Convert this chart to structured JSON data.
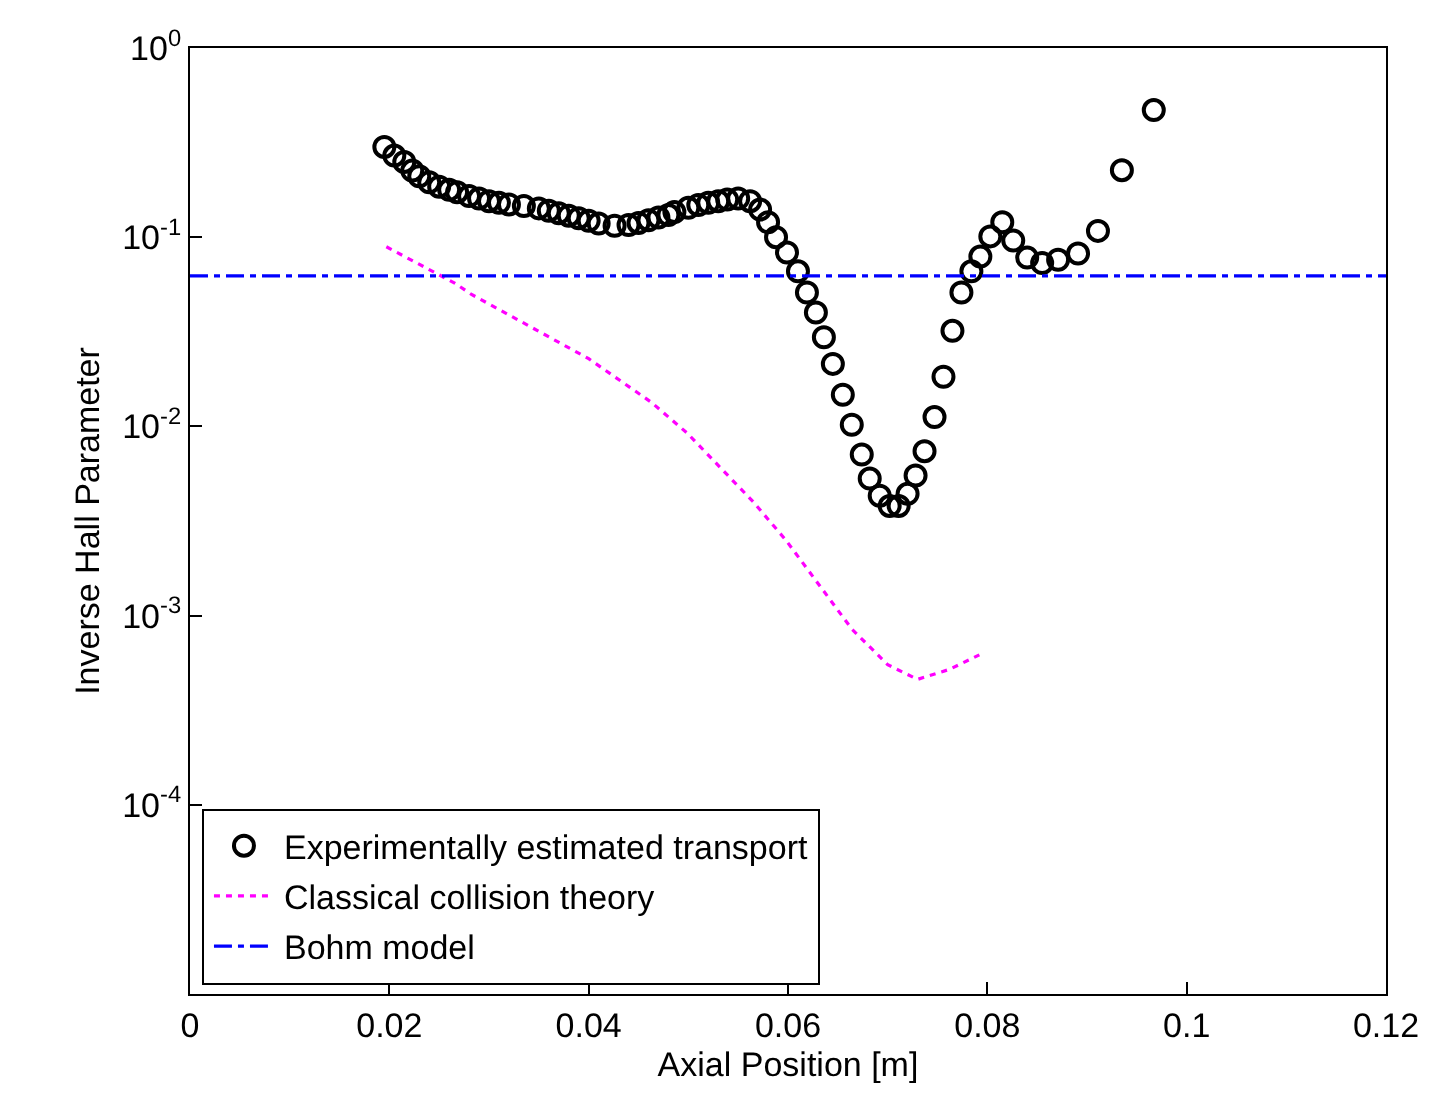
{
  "chart_data": {
    "type": "scatter",
    "xlabel": "Axial Position [m]",
    "ylabel": "Inverse Hall Parameter",
    "log": "y",
    "grid": false,
    "legend": "bottom left",
    "xlim": [
      0,
      0.12
    ],
    "xticks": [
      0,
      0.02,
      0.04,
      0.06,
      0.08,
      0.1,
      0.12
    ],
    "ylim": [
      1e-05,
      1
    ],
    "yticks": [
      {
        "value": 0.0001,
        "label": "10$^{-4}$"
      },
      {
        "value": 0.001,
        "label": "10$^{-3}$"
      },
      {
        "value": 0.01,
        "label": "10$^{-2}$"
      },
      {
        "value": 0.1,
        "label": "10$^{-1}$"
      },
      {
        "value": 1,
        "label": "10$^{0}$"
      }
    ],
    "series": [
      {
        "name": "Experimentally estimated transport",
        "marker": "circle",
        "color": "#000000",
        "x": [
          0.0195,
          0.0205,
          0.0215,
          0.0223,
          0.023,
          0.024,
          0.025,
          0.026,
          0.0268,
          0.028,
          0.029,
          0.03,
          0.031,
          0.032,
          0.0335,
          0.035,
          0.036,
          0.037,
          0.038,
          0.039,
          0.04,
          0.041,
          0.0426,
          0.044,
          0.045,
          0.046,
          0.047,
          0.048,
          0.0486,
          0.05,
          0.051,
          0.052,
          0.053,
          0.0539,
          0.055,
          0.0562,
          0.0572,
          0.058,
          0.0588,
          0.0599,
          0.061,
          0.0619,
          0.0628,
          0.0636,
          0.0645,
          0.0655,
          0.0664,
          0.0674,
          0.0682,
          0.0692,
          0.0702,
          0.0711,
          0.072,
          0.0728,
          0.0737,
          0.0747,
          0.0756,
          0.0765,
          0.0774,
          0.0784,
          0.0793,
          0.0803,
          0.0815,
          0.0826,
          0.084,
          0.0855,
          0.0871,
          0.0891,
          0.0911,
          0.0935,
          0.0967
        ],
        "values": [
          0.3,
          0.27,
          0.25,
          0.225,
          0.21,
          0.195,
          0.185,
          0.178,
          0.173,
          0.165,
          0.16,
          0.155,
          0.152,
          0.149,
          0.146,
          0.142,
          0.138,
          0.134,
          0.13,
          0.126,
          0.122,
          0.118,
          0.115,
          0.116,
          0.119,
          0.123,
          0.127,
          0.131,
          0.136,
          0.143,
          0.148,
          0.152,
          0.155,
          0.158,
          0.16,
          0.155,
          0.14,
          0.12,
          0.1,
          0.083,
          0.066,
          0.051,
          0.04,
          0.0296,
          0.0214,
          0.0147,
          0.0102,
          0.0071,
          0.0053,
          0.0043,
          0.0038,
          0.0038,
          0.0044,
          0.0055,
          0.0074,
          0.0112,
          0.0183,
          0.032,
          0.051,
          0.066,
          0.079,
          0.101,
          0.12,
          0.096,
          0.078,
          0.073,
          0.076,
          0.082,
          0.108,
          0.226,
          0.47
        ]
      },
      {
        "name": "Classical collision theory",
        "type": "line",
        "line_style": "dotted",
        "color": "#ff00ff",
        "x": [
          0.0197,
          0.0266,
          0.0282,
          0.04,
          0.0463,
          0.0499,
          0.0565,
          0.0598,
          0.0664,
          0.07,
          0.073,
          0.0762,
          0.0792
        ],
        "values": [
          0.089,
          0.057,
          0.05,
          0.0228,
          0.0134,
          0.0092,
          0.004,
          0.0025,
          0.00085,
          0.00055,
          0.00046,
          0.00052,
          0.00062
        ]
      },
      {
        "name": "Bohm model",
        "type": "line",
        "line_style": "dashdot",
        "color": "#0000ff",
        "x": [
          0,
          0.12
        ],
        "values": [
          0.0625,
          0.0625
        ]
      }
    ]
  }
}
